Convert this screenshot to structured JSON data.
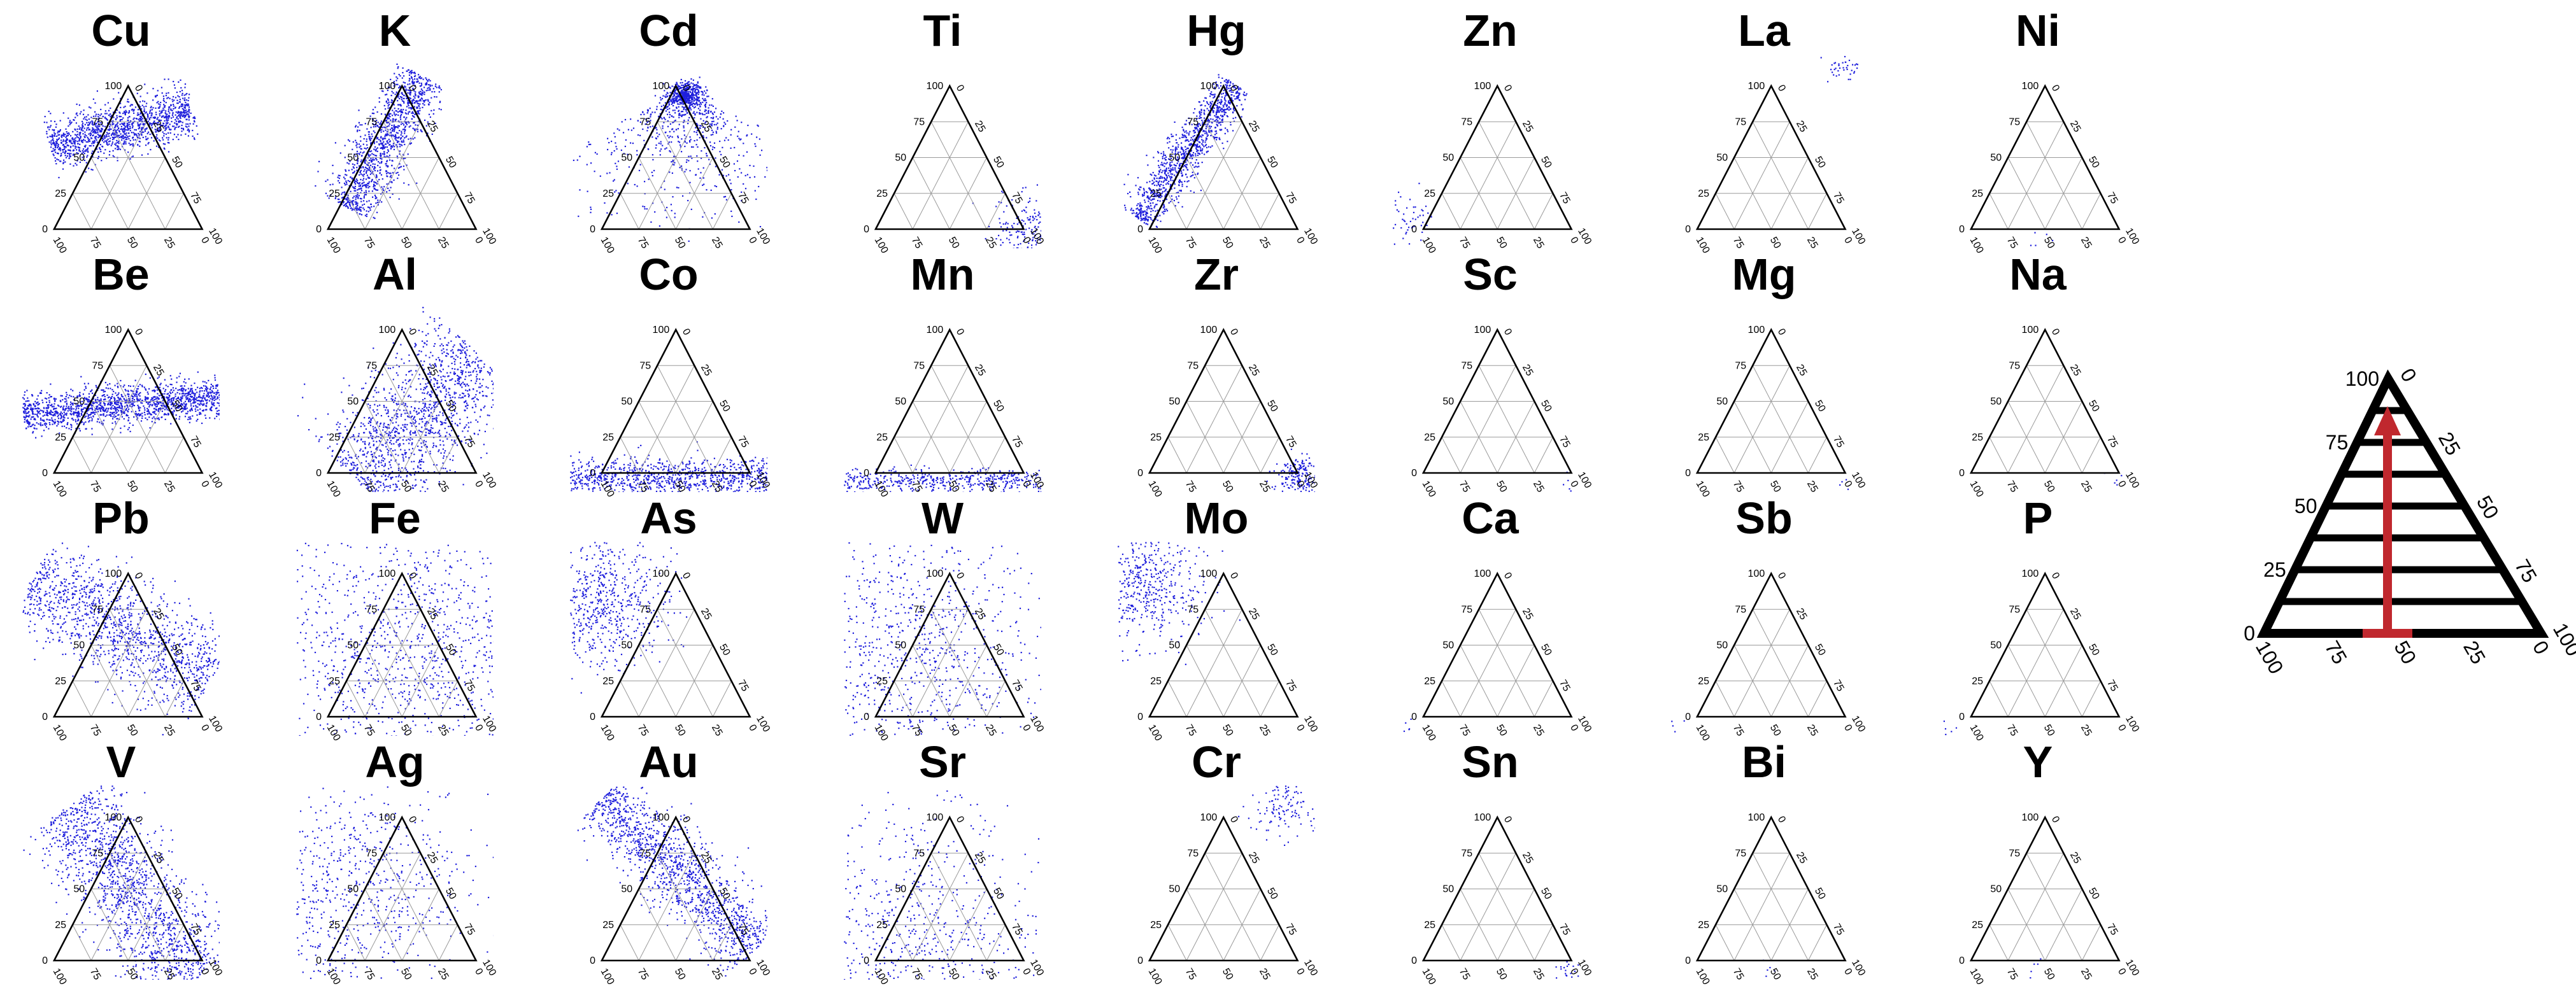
{
  "chart_data": {
    "type": "scatter",
    "subtype": "ternary-small-multiples",
    "grid": true,
    "point_color": "#1f1fdc",
    "ticks": [
      "0",
      "25",
      "50",
      "75",
      "100"
    ],
    "panels": [
      {
        "element": "Cu",
        "pattern": "band",
        "angle": 14,
        "width": 0.13,
        "length": 0.75,
        "cx": 0.5,
        "cy": 0.38,
        "n": 1300
      },
      {
        "element": "K",
        "pattern": "band",
        "angle": 62,
        "width": 0.14,
        "length": 0.78,
        "cx": 0.45,
        "cy": 0.45,
        "n": 1200
      },
      {
        "element": "Cd",
        "pattern": "fan",
        "cx": 0.58,
        "cy": 0.2,
        "spread": 0.35,
        "n": 1100
      },
      {
        "element": "Ti",
        "pattern": "corner",
        "cx": 0.95,
        "cy": 0.9,
        "spread": 0.09,
        "n": 220
      },
      {
        "element": "Hg",
        "pattern": "band",
        "angle": 55,
        "width": 0.1,
        "length": 0.85,
        "cx": 0.35,
        "cy": 0.5,
        "n": 1100
      },
      {
        "element": "Zn",
        "pattern": "corner",
        "cx": 0.1,
        "cy": 0.85,
        "spread": 0.06,
        "n": 50
      },
      {
        "element": "La",
        "pattern": "corner",
        "cx": 0.9,
        "cy": 0.05,
        "spread": 0.04,
        "n": 40
      },
      {
        "element": "Ni",
        "pattern": "corner",
        "cx": 0.5,
        "cy": 0.95,
        "spread": 0.03,
        "n": 5
      },
      {
        "element": "Be",
        "pattern": "band",
        "angle": 5,
        "width": 0.1,
        "length": 1.0,
        "cx": 0.5,
        "cy": 0.55,
        "n": 1500
      },
      {
        "element": "Al",
        "pattern": "band",
        "angle": 45,
        "width": 0.3,
        "length": 0.9,
        "cx": 0.62,
        "cy": 0.62,
        "n": 1400
      },
      {
        "element": "Co",
        "pattern": "bottom",
        "cy": 0.92,
        "spread": 0.08,
        "n": 900
      },
      {
        "element": "Mn",
        "pattern": "bottom",
        "cy": 0.94,
        "spread": 0.05,
        "n": 450
      },
      {
        "element": "Zr",
        "pattern": "corner",
        "cx": 0.93,
        "cy": 0.93,
        "spread": 0.06,
        "n": 230
      },
      {
        "element": "Sc",
        "pattern": "corner",
        "cx": 0.9,
        "cy": 0.95,
        "spread": 0.03,
        "n": 5
      },
      {
        "element": "Mg",
        "pattern": "corner",
        "cx": 0.9,
        "cy": 0.95,
        "spread": 0.03,
        "n": 5
      },
      {
        "element": "Na",
        "pattern": "corner",
        "cx": 0.9,
        "cy": 0.95,
        "spread": 0.03,
        "n": 5
      },
      {
        "element": "Pb",
        "pattern": "band",
        "angle": -30,
        "width": 0.25,
        "length": 1.05,
        "cx": 0.5,
        "cy": 0.45,
        "n": 1300
      },
      {
        "element": "Fe",
        "pattern": "cloud",
        "cx": 0.55,
        "cy": 0.55,
        "spread": 0.38,
        "n": 1300
      },
      {
        "element": "As",
        "pattern": "corner",
        "cx": 0.15,
        "cy": 0.3,
        "spread": 0.17,
        "n": 700
      },
      {
        "element": "W",
        "pattern": "cloud",
        "cx": 0.35,
        "cy": 0.55,
        "spread": 0.35,
        "n": 1000
      },
      {
        "element": "Mo",
        "pattern": "corner",
        "cx": 0.12,
        "cy": 0.22,
        "spread": 0.15,
        "n": 550
      },
      {
        "element": "Ca",
        "pattern": "corner",
        "cx": 0.05,
        "cy": 0.95,
        "spread": 0.03,
        "n": 5
      },
      {
        "element": "Sb",
        "pattern": "corner",
        "cx": 0.05,
        "cy": 0.95,
        "spread": 0.03,
        "n": 5
      },
      {
        "element": "P",
        "pattern": "corner",
        "cx": 0.05,
        "cy": 0.95,
        "spread": 0.03,
        "n": 5
      },
      {
        "element": "V",
        "pattern": "band",
        "angle": -55,
        "width": 0.25,
        "length": 1.1,
        "cx": 0.55,
        "cy": 0.55,
        "n": 1500
      },
      {
        "element": "Ag",
        "pattern": "cloud",
        "cx": 0.25,
        "cy": 0.55,
        "spread": 0.3,
        "n": 800
      },
      {
        "element": "Au",
        "pattern": "band",
        "angle": -45,
        "width": 0.18,
        "length": 1.1,
        "cx": 0.55,
        "cy": 0.45,
        "n": 1300
      },
      {
        "element": "Sr",
        "pattern": "cloud",
        "cx": 0.35,
        "cy": 0.75,
        "spread": 0.3,
        "n": 700
      },
      {
        "element": "Cr",
        "pattern": "corner",
        "cx": 0.85,
        "cy": 0.08,
        "spread": 0.1,
        "n": 150
      },
      {
        "element": "Sn",
        "pattern": "corner",
        "cx": 0.9,
        "cy": 0.95,
        "spread": 0.04,
        "n": 20
      },
      {
        "element": "Bi",
        "pattern": "corner",
        "cx": 0.5,
        "cy": 0.95,
        "spread": 0.03,
        "n": 5
      },
      {
        "element": "Y",
        "pattern": "corner",
        "cx": 0.5,
        "cy": 0.95,
        "spread": 0.03,
        "n": 5
      }
    ],
    "legend": {
      "ticks": [
        "0",
        "25",
        "50",
        "75",
        "100"
      ],
      "arrow_color": "#c0282e"
    }
  }
}
